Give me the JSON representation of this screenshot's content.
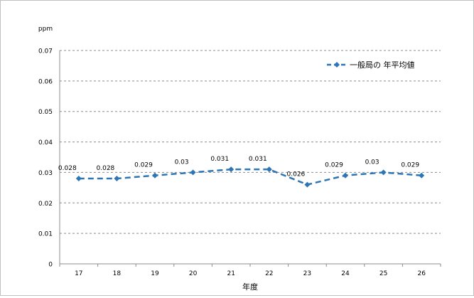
{
  "chart_data": {
    "type": "line",
    "title": "",
    "ylabel": "ppm",
    "xlabel": "年度",
    "categories": [
      "17",
      "18",
      "19",
      "20",
      "21",
      "22",
      "23",
      "24",
      "25",
      "26"
    ],
    "series": [
      {
        "name": "一般局の 年平均値",
        "values": [
          0.028,
          0.028,
          0.029,
          0.03,
          0.031,
          0.031,
          0.026,
          0.029,
          0.03,
          0.029
        ],
        "labels": [
          "0.028",
          "0.028",
          "0.029",
          "0.03",
          "0.031",
          "0.031",
          "0.026",
          "0.029",
          "0.03",
          "0.029"
        ],
        "color": "#2e75b6",
        "line_style": "dashed",
        "marker": "diamond"
      }
    ],
    "ylim": [
      0,
      0.07
    ],
    "yticks": [
      "0",
      "0.01",
      "0.02",
      "0.03",
      "0.04",
      "0.05",
      "0.06",
      "0.07"
    ],
    "grid": "horizontal dashed",
    "legend_position": "top-right"
  }
}
